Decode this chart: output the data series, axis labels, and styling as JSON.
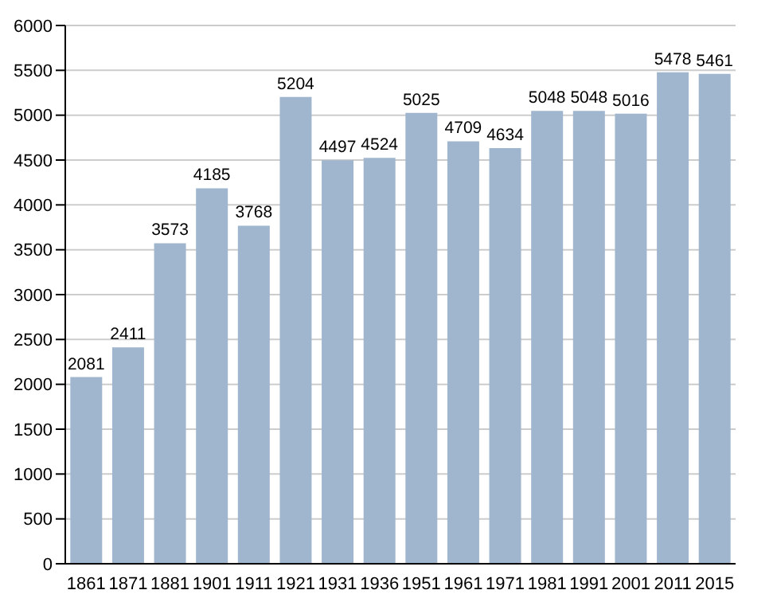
{
  "chart_data": {
    "type": "bar",
    "categories": [
      "1861",
      "1871",
      "1881",
      "1901",
      "1911",
      "1921",
      "1931",
      "1936",
      "1951",
      "1961",
      "1971",
      "1981",
      "1991",
      "2001",
      "2011",
      "2015"
    ],
    "values": [
      2081,
      2411,
      3573,
      4185,
      3768,
      5204,
      4497,
      4524,
      5025,
      4709,
      4634,
      5048,
      5048,
      5016,
      5478,
      5461
    ],
    "color": "#a0b6cf",
    "ylim": [
      0,
      6000
    ],
    "yticks": [
      0,
      500,
      1000,
      1500,
      2000,
      2500,
      3000,
      3500,
      4000,
      4500,
      5000,
      5500,
      6000
    ],
    "grid": "y",
    "data_labels": true
  }
}
